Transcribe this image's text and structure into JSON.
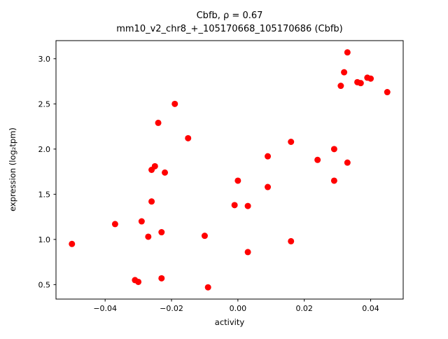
{
  "figure": {
    "background": "#ffffff"
  },
  "chart_data": {
    "type": "scatter",
    "title": "Cbfb, ρ = 0.67",
    "subtitle": "mm10_v2_chr8_+_105170668_105170686 (Cbfb)",
    "xlabel": "activity",
    "ylabel": "expression (log₂tpm)",
    "xlim": [
      -0.0548,
      0.0498
    ],
    "ylim": [
      0.34,
      3.2
    ],
    "xticks": [
      -0.04,
      -0.02,
      0.0,
      0.02,
      0.04
    ],
    "xtick_labels": [
      "−0.04",
      "−0.02",
      "0.00",
      "0.02",
      "0.04"
    ],
    "yticks": [
      0.5,
      1.0,
      1.5,
      2.0,
      2.5,
      3.0
    ],
    "ytick_labels": [
      "0.5",
      "1.0",
      "1.5",
      "2.0",
      "2.5",
      "3.0"
    ],
    "grid": false,
    "legend": null,
    "marker_color": "#ff0000",
    "marker_radius": 4.5,
    "points": [
      [
        -0.05,
        0.95
      ],
      [
        -0.037,
        1.17
      ],
      [
        -0.031,
        0.55
      ],
      [
        -0.03,
        0.53
      ],
      [
        -0.029,
        1.2
      ],
      [
        -0.027,
        1.03
      ],
      [
        -0.026,
        1.42
      ],
      [
        -0.026,
        1.77
      ],
      [
        -0.025,
        1.81
      ],
      [
        -0.024,
        2.29
      ],
      [
        -0.023,
        0.57
      ],
      [
        -0.023,
        1.08
      ],
      [
        -0.022,
        1.74
      ],
      [
        -0.019,
        2.5
      ],
      [
        -0.015,
        2.12
      ],
      [
        -0.01,
        1.04
      ],
      [
        -0.009,
        0.47
      ],
      [
        -0.001,
        1.38
      ],
      [
        0.0,
        1.65
      ],
      [
        0.003,
        0.86
      ],
      [
        0.003,
        1.37
      ],
      [
        0.009,
        1.92
      ],
      [
        0.009,
        1.58
      ],
      [
        0.016,
        0.98
      ],
      [
        0.016,
        2.08
      ],
      [
        0.024,
        1.88
      ],
      [
        0.029,
        2.0
      ],
      [
        0.029,
        1.65
      ],
      [
        0.031,
        2.7
      ],
      [
        0.032,
        2.85
      ],
      [
        0.033,
        3.07
      ],
      [
        0.033,
        1.85
      ],
      [
        0.036,
        2.74
      ],
      [
        0.037,
        2.73
      ],
      [
        0.039,
        2.79
      ],
      [
        0.04,
        2.78
      ],
      [
        0.045,
        2.63
      ]
    ]
  }
}
